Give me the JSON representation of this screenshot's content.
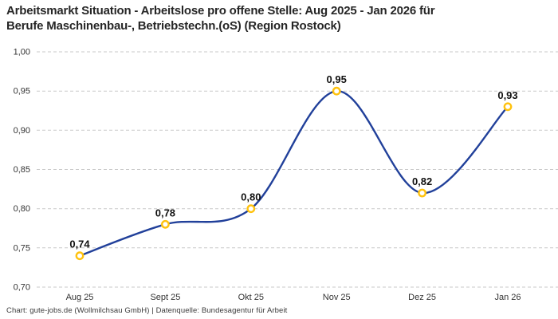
{
  "header": {
    "title_line1": "Arbeitsmarkt Situation - Arbeitslose pro offene Stelle: Aug 2025 - Jan 2026 für",
    "title_line2": "Berufe Maschinenbau-, Betriebstechn.(oS) (Region Rostock)"
  },
  "footer": {
    "credit": "Chart: gute-jobs.de (Wollmilchsau GmbH) | Datenquelle: Bundesagentur für Arbeit"
  },
  "chart_data": {
    "type": "line",
    "title": "Arbeitsmarkt Situation - Arbeitslose pro offene Stelle: Aug 2025 - Jan 2026 für Berufe Maschinenbau-, Betriebstechn.(oS) (Region Rostock)",
    "categories": [
      "Aug 25",
      "Sept 25",
      "Okt 25",
      "Nov 25",
      "Dez 25",
      "Jan 26"
    ],
    "values": [
      0.74,
      0.78,
      0.8,
      0.95,
      0.82,
      0.93
    ],
    "point_labels": [
      "0,74",
      "0,78",
      "0,80",
      "0,95",
      "0,82",
      "0,93"
    ],
    "y_ticks": [
      "1,00",
      "0,95",
      "0,90",
      "0,85",
      "0,80",
      "0,75",
      "0,70"
    ],
    "ylim": [
      0.7,
      1.0
    ],
    "tick_step": 0.05,
    "xlabel": "",
    "ylabel": "",
    "grid": "horizontal-dashed",
    "legend": "none",
    "line_style": "smooth-spline",
    "colors": {
      "line": "#21409A",
      "marker_ring": "#FFC20E",
      "marker_fill": "#FFFFFF",
      "grid": "#C9C9C9",
      "tick_label": "#333333",
      "point_label": "#111111",
      "background": "#FFFFFF"
    }
  }
}
